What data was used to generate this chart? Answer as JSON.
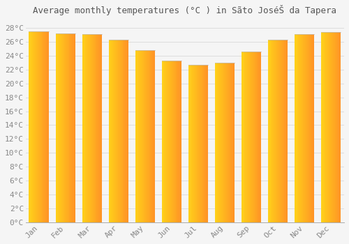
{
  "title": "Average monthly temperatures (°C ) in Sãto JoséŠ da Tapera",
  "months": [
    "Jan",
    "Feb",
    "Mar",
    "Apr",
    "May",
    "Jun",
    "Jul",
    "Aug",
    "Sep",
    "Oct",
    "Nov",
    "Dec"
  ],
  "values": [
    27.5,
    27.2,
    27.1,
    26.3,
    24.8,
    23.3,
    22.7,
    23.0,
    24.6,
    26.3,
    27.1,
    27.4
  ],
  "bar_color_left": "#FFD050",
  "bar_color_right": "#FFA020",
  "bar_edge_color": "#BBBBBB",
  "ylim": [
    0,
    29
  ],
  "yticks": [
    0,
    2,
    4,
    6,
    8,
    10,
    12,
    14,
    16,
    18,
    20,
    22,
    24,
    26,
    28
  ],
  "grid_color": "#dddddd",
  "background_color": "#f5f5f5",
  "plot_bg_color": "#f5f5f5",
  "title_fontsize": 9,
  "tick_fontsize": 8,
  "tick_color": "#888888",
  "title_color": "#555555",
  "bar_width": 0.75
}
